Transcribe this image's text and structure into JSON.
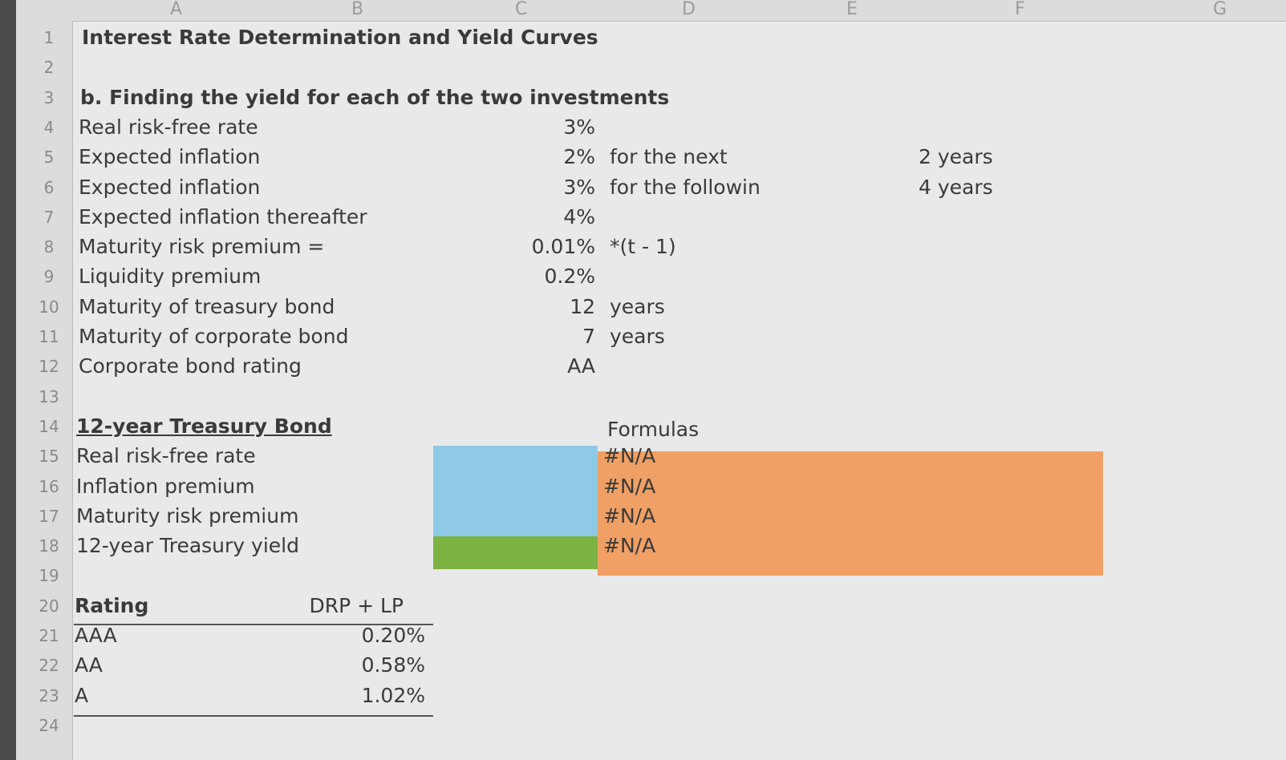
{
  "column_headers": [
    "A",
    "B",
    "C",
    "D",
    "E",
    "F",
    "G"
  ],
  "row_numbers": [
    1,
    2,
    3,
    4,
    5,
    6,
    7,
    8,
    9,
    10,
    11,
    12,
    13,
    14,
    15,
    16,
    17,
    18,
    19,
    20,
    21,
    22,
    23,
    24
  ],
  "title": "Interest Rate Determination and Yield Curves",
  "section_heading": "b. Finding the yield for each of the two investments",
  "parameters": [
    {
      "label": "Real risk-free rate",
      "value": "3%"
    },
    {
      "label": "Expected inflation",
      "value": "2%",
      "note": "for the next",
      "period": "2 years"
    },
    {
      "label": "Expected inflation",
      "value": "3%",
      "note": "for the followin",
      "period": "4 years"
    },
    {
      "label": "Expected inflation thereafter",
      "value": "4%"
    },
    {
      "label": "Maturity risk premium =",
      "value": "0.01%",
      "note": "*(t - 1)"
    },
    {
      "label": "Liquidity premium",
      "value": "0.2%"
    },
    {
      "label": "Maturity of treasury bond",
      "value": 12,
      "note": "years"
    },
    {
      "label": "Maturity of corporate bond",
      "value": 7,
      "note": "years"
    },
    {
      "label": "Corporate bond rating",
      "value": "AA"
    }
  ],
  "treasury": {
    "heading": "12-year Treasury Bond",
    "formulas_label": "Formulas",
    "rows": [
      {
        "label": "Real risk-free rate",
        "formula": "#N/A"
      },
      {
        "label": "Inflation premium",
        "formula": "#N/A"
      },
      {
        "label": "Maturity risk premium",
        "formula": "#N/A"
      },
      {
        "label": "12-year Treasury yield",
        "formula": "#N/A"
      }
    ]
  },
  "ratings": {
    "headers": [
      "Rating",
      "DRP + LP"
    ],
    "rows": [
      [
        "AAA",
        "0.20%"
      ],
      [
        "AA",
        "0.58%"
      ],
      [
        "A",
        "1.02%"
      ]
    ]
  }
}
